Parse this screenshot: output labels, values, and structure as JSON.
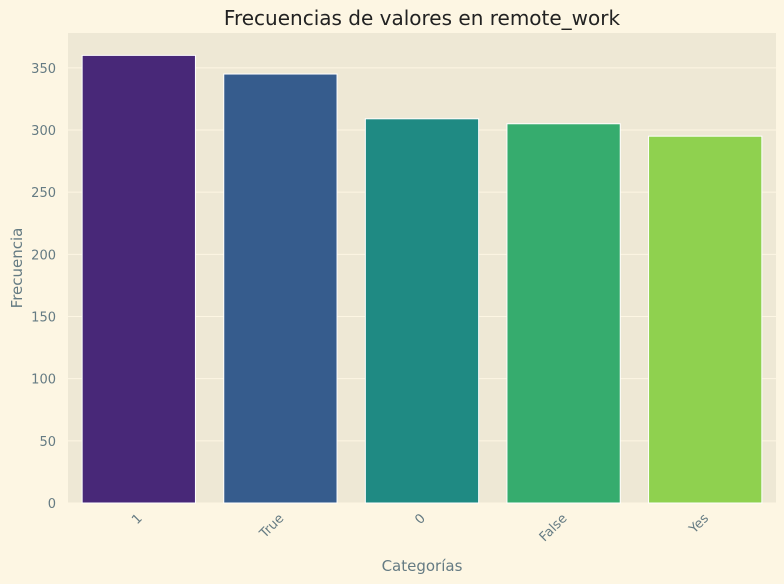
{
  "chart_data": {
    "type": "bar",
    "title": "Frecuencias de valores en remote_work",
    "xlabel": "Categorías",
    "ylabel": "Frecuencia",
    "categories": [
      "1",
      "True",
      "0",
      "False",
      "Yes"
    ],
    "values": [
      360,
      345,
      309,
      305,
      295
    ],
    "ylim": [
      0,
      378
    ],
    "yticks": [
      0,
      50,
      100,
      150,
      200,
      250,
      300,
      350
    ],
    "grid": true,
    "colors": [
      "#482878",
      "#365c8d",
      "#1f8a83",
      "#36ac6e",
      "#8fd14f"
    ],
    "plot_background": "#eee8d5",
    "page_background": "#fdf6e3",
    "x_tick_rotation": 45
  }
}
